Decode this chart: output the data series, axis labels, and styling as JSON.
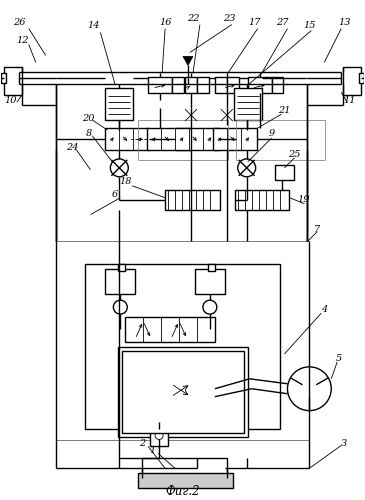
{
  "title": "Фиг.2",
  "bg_color": "#ffffff",
  "lc": "#000000",
  "lw": 1.0,
  "tlw": 0.6,
  "fig_w": 3.65,
  "fig_h": 5.0
}
